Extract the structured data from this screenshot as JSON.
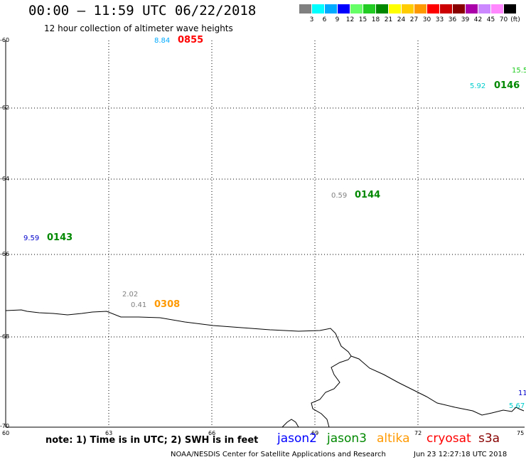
{
  "header": {
    "title": "00:00 – 11:59 UTC 06/22/2018",
    "subtitle": "12 hour collection of altimeter wave heights"
  },
  "legend": {
    "unit": "(ft)",
    "colors": [
      "#808080",
      "#00ffff",
      "#00aaff",
      "#0000ff",
      "#66ff66",
      "#22cc22",
      "#008800",
      "#ffff00",
      "#ffcc00",
      "#ff9900",
      "#ff0000",
      "#cc0000",
      "#880000",
      "#aa00aa",
      "#cc88ff",
      "#ff88ff",
      "#000000"
    ],
    "labels": [
      "3",
      "6",
      "9",
      "12",
      "15",
      "18",
      "21",
      "24",
      "27",
      "30",
      "33",
      "36",
      "39",
      "42",
      "45",
      "70"
    ]
  },
  "axes": {
    "lat_labels": [
      "-60",
      "-62",
      "-64",
      "-66",
      "-68",
      "-70"
    ],
    "lon_labels": [
      "60",
      "63",
      "66",
      "69",
      "72",
      "75"
    ]
  },
  "observations": [
    {
      "swh": "8.84",
      "time": "0855",
      "swh_color": "#00aaff",
      "time_color": "#ff0000"
    },
    {
      "swh": "15.5",
      "time": "",
      "swh_color": "#22cc22",
      "time_color": "#22cc22"
    },
    {
      "swh": "5.92",
      "time": "0146",
      "swh_color": "#00cccc",
      "time_color": "#008800"
    },
    {
      "swh": "0.59",
      "time": "0144",
      "swh_color": "#808080",
      "time_color": "#008800"
    },
    {
      "swh": "9.59",
      "time": "0143",
      "swh_color": "#0000cc",
      "time_color": "#008800"
    },
    {
      "swh": "2.02",
      "time": "",
      "swh_color": "#808080",
      "time_color": "#808080"
    },
    {
      "swh": "0.41",
      "time": "0308",
      "swh_color": "#808080",
      "time_color": "#ff9900"
    },
    {
      "swh": "11",
      "time": "",
      "swh_color": "#0000cc",
      "time_color": "#0000cc"
    },
    {
      "swh": "5.67",
      "time": "",
      "swh_color": "#00cccc",
      "time_color": "#00cccc"
    }
  ],
  "footer": {
    "note": "note: 1) Time is in UTC; 2) SWH is in feet",
    "satellites": [
      {
        "name": "jason2",
        "color": "#0000ff"
      },
      {
        "name": "jason3",
        "color": "#008800"
      },
      {
        "name": "altika",
        "color": "#ff9900"
      },
      {
        "name": "cryosat",
        "color": "#ff0000"
      },
      {
        "name": "s3a",
        "color": "#880000"
      }
    ],
    "credit": "NOAA/NESDIS Center for Satellite Applications and Research",
    "timestamp": "Jun 23 12:27:18 UTC 2018"
  }
}
